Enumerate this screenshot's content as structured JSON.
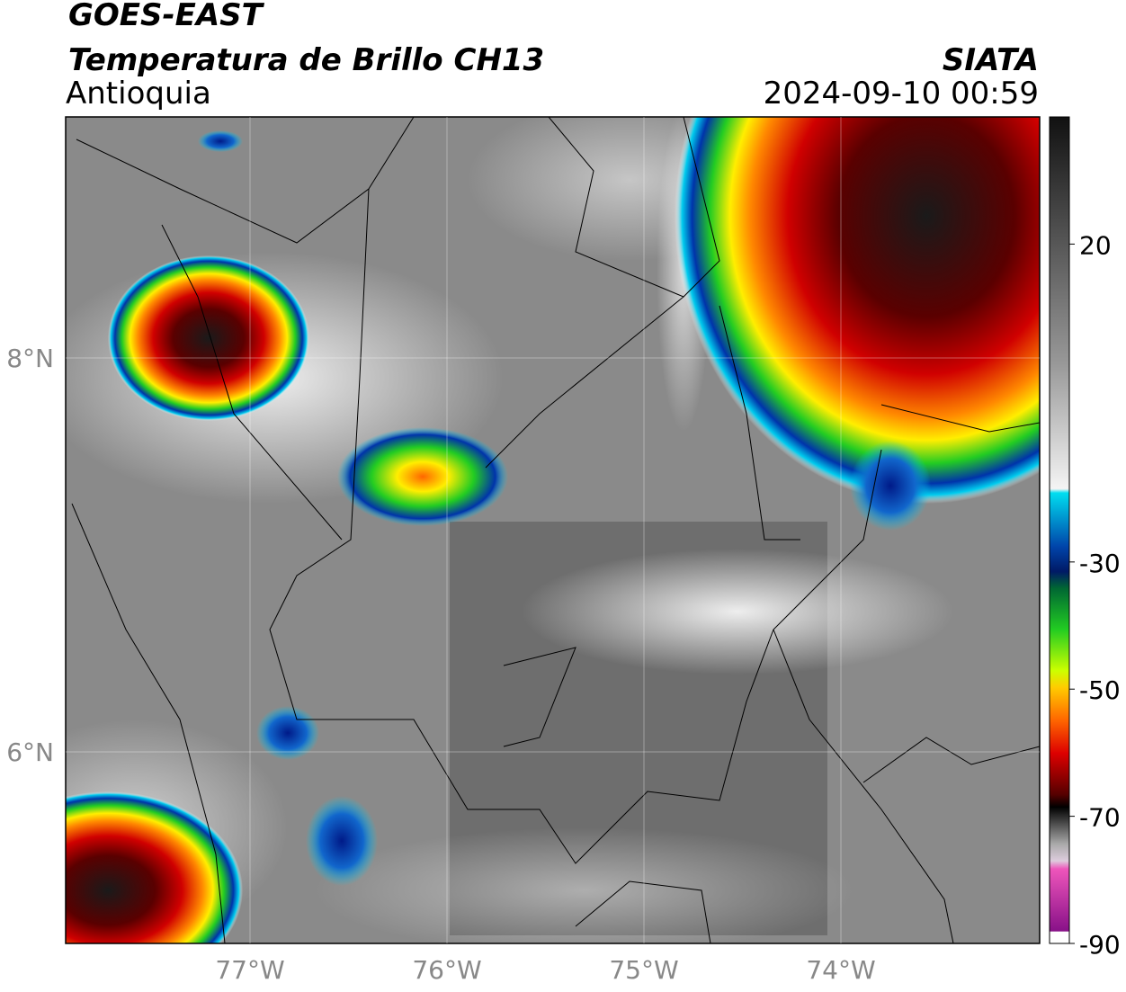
{
  "header": {
    "title": "GOES-EAST",
    "subtitle": "Temperatura de Brillo CH13",
    "region": "Antioquia",
    "source": "SIATA",
    "datetime": "2024-09-10 00:59"
  },
  "map": {
    "lat_labels": [
      "8°N",
      "6°N"
    ],
    "lon_labels": [
      "77°W",
      "76°W",
      "75°W",
      "74°W"
    ]
  },
  "colorbar": {
    "range": [
      -90,
      40
    ],
    "ticks": [
      20,
      -30,
      -50,
      -70,
      -90
    ]
  }
}
